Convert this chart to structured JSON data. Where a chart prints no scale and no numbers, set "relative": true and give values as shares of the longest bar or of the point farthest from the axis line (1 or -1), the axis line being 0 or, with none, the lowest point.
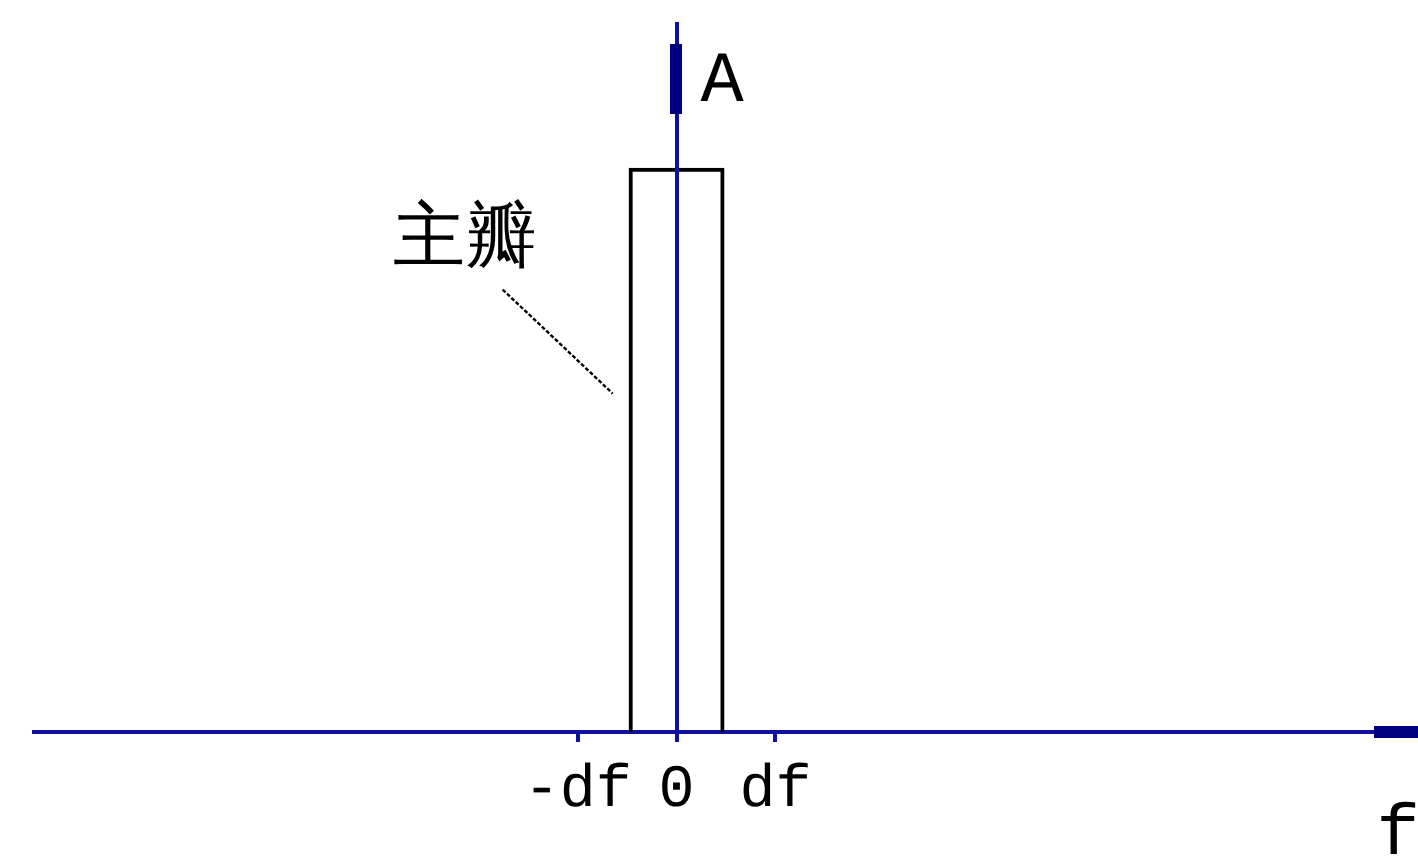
{
  "chart_data": {
    "type": "bar",
    "xlabel": "f",
    "ylabel": "A",
    "annotations": [
      "主瓣"
    ],
    "categories": [
      null,
      null,
      null,
      null,
      null,
      "-df",
      "0",
      "df",
      null,
      null,
      null,
      null,
      null,
      null
    ],
    "values": [
      null,
      null,
      null,
      null,
      null,
      null,
      1,
      null,
      null,
      null,
      null,
      null,
      null,
      null
    ],
    "color": "#000000",
    "relative": true
  }
}
